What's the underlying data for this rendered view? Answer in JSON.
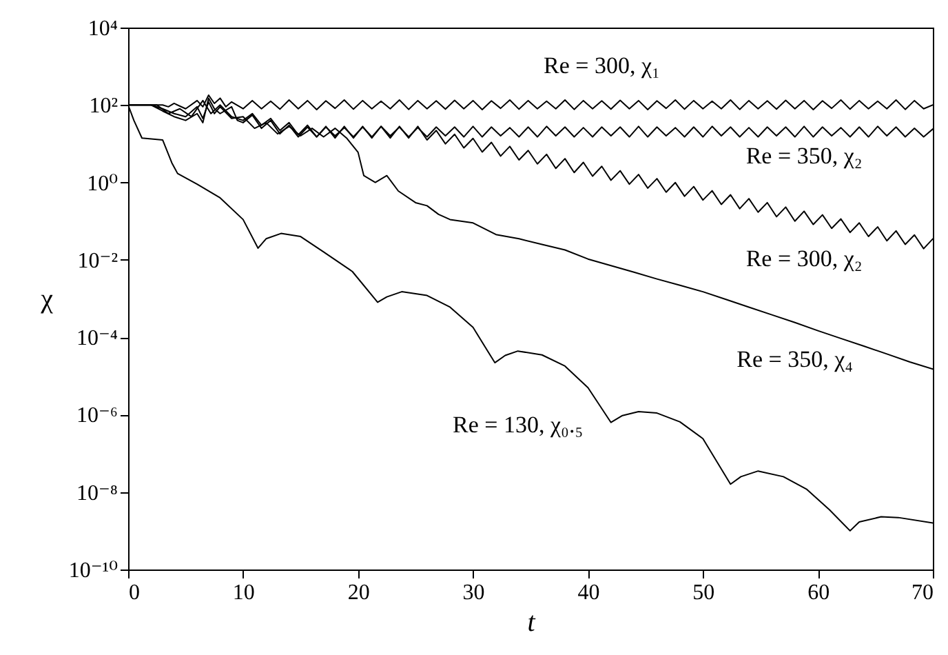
{
  "chart_data": {
    "type": "line",
    "xlabel": "t",
    "ylabel": "χ",
    "log": "y",
    "grid": false,
    "line_style": "solid",
    "marker": "none",
    "xlim": [
      0,
      70
    ],
    "xticks": [
      0,
      10,
      20,
      30,
      40,
      50,
      60,
      70
    ],
    "ylim": [
      1e-10,
      10000
    ],
    "yticks": [
      {
        "value": 1e-10,
        "label": "10⁻¹⁰"
      },
      {
        "value": 1e-08,
        "label": "10⁻⁸"
      },
      {
        "value": 1e-06,
        "label": "10⁻⁶"
      },
      {
        "value": 0.0001,
        "label": "10⁻⁴"
      },
      {
        "value": 0.01,
        "label": "10⁻²"
      },
      {
        "value": 1,
        "label": "10⁰"
      },
      {
        "value": 100,
        "label": "10²"
      },
      {
        "value": 10000,
        "label": "10⁴"
      }
    ],
    "series": [
      {
        "name": "Re = 300, χ₁",
        "color": "#000000",
        "x": [
          0,
          3,
          3.5,
          4,
          5,
          6,
          6.5,
          7,
          7.5,
          8,
          8.5,
          9,
          10,
          10.8,
          11.6,
          12.4,
          13.2,
          14,
          14.8,
          15.6,
          16.4,
          17.2,
          18,
          18.8,
          19.6,
          20.4,
          21.2,
          22,
          22.8,
          23.6,
          24.4,
          25.2,
          26,
          26.8,
          27.6,
          28.4,
          29.2,
          30,
          30.8,
          31.6,
          32.4,
          33.2,
          34,
          34.8,
          35.6,
          36.4,
          37.2,
          38,
          38.8,
          39.6,
          40.4,
          41.2,
          42,
          42.8,
          43.6,
          44.4,
          45.2,
          46,
          46.8,
          47.6,
          48.4,
          49.2,
          50,
          50.8,
          51.6,
          52.4,
          53.2,
          54,
          54.8,
          55.6,
          56.4,
          57.2,
          58,
          58.8,
          59.6,
          60.4,
          61.2,
          62,
          62.8,
          63.6,
          64.4,
          65.2,
          66,
          66.8,
          67.6,
          68.4,
          69.2,
          70
        ],
        "values": [
          100,
          100,
          90,
          110,
          80,
          130,
          90,
          180,
          110,
          150,
          90,
          120,
          80,
          130,
          80,
          125,
          78,
          135,
          80,
          130,
          76,
          128,
          82,
          135,
          78,
          130,
          80,
          125,
          80,
          135,
          77,
          130,
          80,
          128,
          78,
          132,
          80,
          130,
          76,
          128,
          82,
          135,
          78,
          130,
          80,
          125,
          80,
          135,
          77,
          130,
          80,
          128,
          78,
          132,
          80,
          130,
          76,
          128,
          82,
          135,
          78,
          130,
          80,
          125,
          80,
          135,
          77,
          130,
          80,
          128,
          78,
          132,
          80,
          130,
          76,
          128,
          82,
          135,
          78,
          130,
          80,
          125,
          80,
          135,
          77,
          130,
          80,
          100
        ]
      },
      {
        "name": "Re = 350, χ₂",
        "color": "#000000",
        "x": [
          0,
          2,
          3,
          4,
          5,
          6,
          6.5,
          7,
          7.5,
          8,
          9,
          9.5,
          10,
          10.8,
          11.6,
          12.4,
          13.2,
          14,
          14.8,
          15.6,
          16.4,
          17.2,
          18,
          18.8,
          19.6,
          20.4,
          21.2,
          22,
          22.8,
          23.6,
          24.4,
          25.2,
          26,
          26.8,
          27.6,
          28.4,
          29.2,
          30,
          30.8,
          31.6,
          32.4,
          33.2,
          34,
          34.8,
          35.6,
          36.4,
          37.2,
          38,
          38.8,
          39.6,
          40.4,
          41.2,
          42,
          42.8,
          43.6,
          44.4,
          45.2,
          46,
          46.8,
          47.6,
          48.4,
          49.2,
          50,
          50.8,
          51.6,
          52.4,
          53.2,
          54,
          54.8,
          55.6,
          56.4,
          57.2,
          58,
          58.8,
          59.6,
          60.4,
          61.2,
          62,
          62.8,
          63.6,
          64.4,
          65.2,
          66,
          66.8,
          67.6,
          68.4,
          69.2,
          70
        ],
        "values": [
          100,
          100,
          70,
          50,
          40,
          60,
          35,
          150,
          80,
          60,
          90,
          40,
          35,
          55,
          25,
          40,
          18,
          30,
          15,
          27,
          15,
          27,
          16,
          26,
          15,
          27,
          15,
          28,
          16,
          27,
          15,
          26,
          15,
          27,
          16,
          27,
          15,
          28,
          15,
          27,
          16,
          26,
          15,
          27,
          15,
          28,
          16,
          27,
          15,
          26,
          15,
          27,
          16,
          27,
          15,
          28,
          15,
          27,
          16,
          26,
          15,
          27,
          15,
          28,
          16,
          27,
          15,
          26,
          15,
          27,
          16,
          27,
          15,
          28,
          15,
          27,
          16,
          26,
          15,
          27,
          15,
          28,
          16,
          27,
          15,
          25,
          15,
          24
        ]
      },
      {
        "name": "Re = 300, χ₂",
        "color": "#000000",
        "x": [
          0,
          2.5,
          3.5,
          4.5,
          5.5,
          6.5,
          7.2,
          8,
          9,
          10,
          10.8,
          11.6,
          12.4,
          13.2,
          14,
          14.8,
          15.6,
          16.4,
          17.2,
          18,
          18.8,
          19.6,
          20.4,
          21.2,
          22,
          22.8,
          23.6,
          24.4,
          25.2,
          26,
          26.8,
          27.6,
          28.4,
          29.2,
          30,
          30.8,
          31.6,
          32.4,
          33.2,
          34,
          34.8,
          35.6,
          36.4,
          37.2,
          38,
          38.8,
          39.6,
          40.4,
          41.2,
          42,
          42.8,
          43.6,
          44.4,
          45.2,
          46,
          46.8,
          47.6,
          48.4,
          49.2,
          50,
          50.8,
          51.6,
          52.4,
          53.2,
          54,
          54.8,
          55.6,
          56.4,
          57.2,
          58,
          58.8,
          59.6,
          60.4,
          61.2,
          62,
          62.8,
          63.6,
          64.4,
          65.2,
          66,
          66.8,
          67.6,
          68.4,
          69.2,
          70
        ],
        "values": [
          100,
          100,
          60,
          80,
          50,
          130,
          60,
          100,
          50,
          40,
          60,
          30,
          45,
          22,
          35,
          17,
          30,
          15,
          28,
          14,
          28,
          14,
          28,
          14,
          28,
          14,
          28,
          14,
          28,
          12.5,
          22,
          9.9,
          17.5,
          7.8,
          13.7,
          6.1,
          10.8,
          4.8,
          8.5,
          3.8,
          6.7,
          3,
          5.3,
          2.3,
          4.1,
          1.8,
          3.3,
          1.45,
          2.6,
          1.14,
          2,
          0.9,
          1.6,
          0.71,
          1.25,
          0.56,
          0.99,
          0.44,
          0.78,
          0.35,
          0.61,
          0.27,
          0.48,
          0.21,
          0.38,
          0.17,
          0.3,
          0.13,
          0.23,
          0.1,
          0.18,
          0.082,
          0.145,
          0.065,
          0.114,
          0.051,
          0.09,
          0.04,
          0.071,
          0.031,
          0.056,
          0.025,
          0.044,
          0.0195,
          0.035
        ]
      },
      {
        "name": "Re = 350, χ₄",
        "color": "#000000",
        "x": [
          0,
          2,
          3,
          4,
          5,
          6,
          6.5,
          7,
          7.5,
          8,
          9,
          10,
          11,
          12,
          13,
          14,
          15,
          16,
          17,
          18,
          19,
          20,
          20.5,
          21.5,
          22.5,
          23.5,
          25,
          26,
          27,
          28,
          30,
          32,
          34,
          36,
          38,
          40,
          42,
          44,
          46,
          48,
          50,
          52,
          54,
          56,
          58,
          60,
          62,
          64,
          66,
          68,
          70
        ],
        "values": [
          100,
          100,
          80,
          60,
          50,
          90,
          45,
          120,
          60,
          90,
          45,
          50,
          25,
          35,
          18,
          28,
          16,
          25,
          15,
          25,
          14,
          6,
          1.5,
          1,
          1.5,
          0.6,
          0.3,
          0.25,
          0.15,
          0.11,
          0.09,
          0.045,
          0.035,
          0.025,
          0.018,
          0.0105,
          0.0071,
          0.0048,
          0.0032,
          0.0022,
          0.0015,
          0.00095,
          0.0006,
          0.00038,
          0.00024,
          0.000148,
          9.3e-05,
          5.9e-05,
          3.7e-05,
          2.3e-05,
          1.5e-05
        ]
      },
      {
        "name": "Re = 130, χ₀.₅",
        "color": "#000000",
        "x": [
          0,
          0.5,
          1.2,
          3,
          3.8,
          4.3,
          6,
          8,
          10,
          11.3,
          12,
          13.3,
          15,
          17,
          19.5,
          21.7,
          22.5,
          23.8,
          26,
          28,
          30,
          31.9,
          32.8,
          33.9,
          36,
          38,
          40,
          42,
          43,
          44.4,
          46,
          48,
          50,
          52.4,
          53.3,
          54.8,
          57,
          59,
          61,
          62.8,
          63.6,
          65.5,
          67,
          70
        ],
        "values": [
          100,
          40,
          14,
          12.5,
          3.2,
          1.7,
          0.9,
          0.4,
          0.11,
          0.02,
          0.035,
          0.048,
          0.04,
          0.016,
          0.005,
          0.0008,
          0.0011,
          0.0015,
          0.0012,
          0.0006,
          0.00018,
          2.2e-05,
          3.4e-05,
          4.4e-05,
          3.5e-05,
          1.8e-05,
          5e-06,
          6.3e-07,
          9.5e-07,
          1.2e-06,
          1.1e-06,
          6.5e-07,
          2.4e-07,
          1.6e-08,
          2.5e-08,
          3.5e-08,
          2.5e-08,
          1.2e-08,
          3.5e-09,
          1e-09,
          1.7e-09,
          2.3e-09,
          2.2e-09,
          1.6e-09
        ]
      }
    ]
  }
}
